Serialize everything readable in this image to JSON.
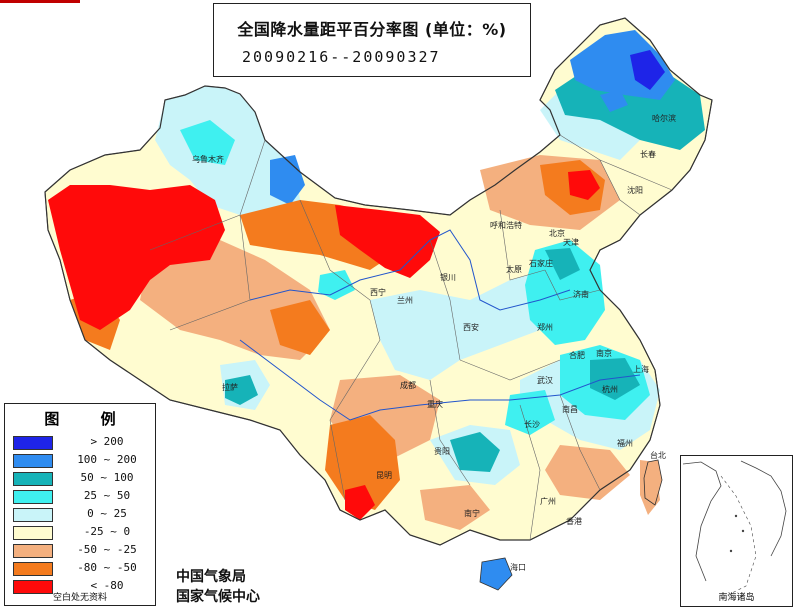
{
  "title": {
    "main": "全国降水量距平百分率图 (单位：%)",
    "period": "20090216--20090327"
  },
  "legend": {
    "title": "图 例",
    "items": [
      {
        "label": "> 200",
        "color": "#1e24e8"
      },
      {
        "label": "100 ~ 200",
        "color": "#2f8cf0"
      },
      {
        "label": "50 ~ 100",
        "color": "#16b3b8"
      },
      {
        "label": "25 ~ 50",
        "color": "#3ff0f0"
      },
      {
        "label": "0 ~ 25",
        "color": "#c9f4f9"
      },
      {
        "label": "-25 ~ 0",
        "color": "#fffcd0"
      },
      {
        "label": "-50 ~ -25",
        "color": "#f4b07f"
      },
      {
        "label": "-80 ~ -50",
        "color": "#f47b1e"
      },
      {
        "label": "< -80",
        "color": "#ff0a0a"
      }
    ],
    "note": "空白处无资料"
  },
  "agency": {
    "line1": "中国气象局",
    "line2": "国家气候中心"
  },
  "inset": {
    "label": "南海诸岛"
  },
  "cities": [
    {
      "name": "哈尔滨"
    },
    {
      "name": "长春"
    },
    {
      "name": "沈阳"
    },
    {
      "name": "乌鲁木齐"
    },
    {
      "name": "呼和浩特"
    },
    {
      "name": "北京"
    },
    {
      "name": "天津"
    },
    {
      "name": "石家庄"
    },
    {
      "name": "太原"
    },
    {
      "name": "济南"
    },
    {
      "name": "银川"
    },
    {
      "name": "西宁"
    },
    {
      "name": "兰州"
    },
    {
      "name": "西安"
    },
    {
      "name": "郑州"
    },
    {
      "name": "合肥"
    },
    {
      "name": "南京"
    },
    {
      "name": "上海"
    },
    {
      "name": "武汉"
    },
    {
      "name": "杭州"
    },
    {
      "name": "南昌"
    },
    {
      "name": "长沙"
    },
    {
      "name": "拉萨"
    },
    {
      "name": "成都"
    },
    {
      "name": "重庆"
    },
    {
      "name": "贵阳"
    },
    {
      "name": "昆明"
    },
    {
      "name": "南宁"
    },
    {
      "name": "广州"
    },
    {
      "name": "香港"
    },
    {
      "name": "福州"
    },
    {
      "name": "台北"
    },
    {
      "name": "海口"
    }
  ]
}
